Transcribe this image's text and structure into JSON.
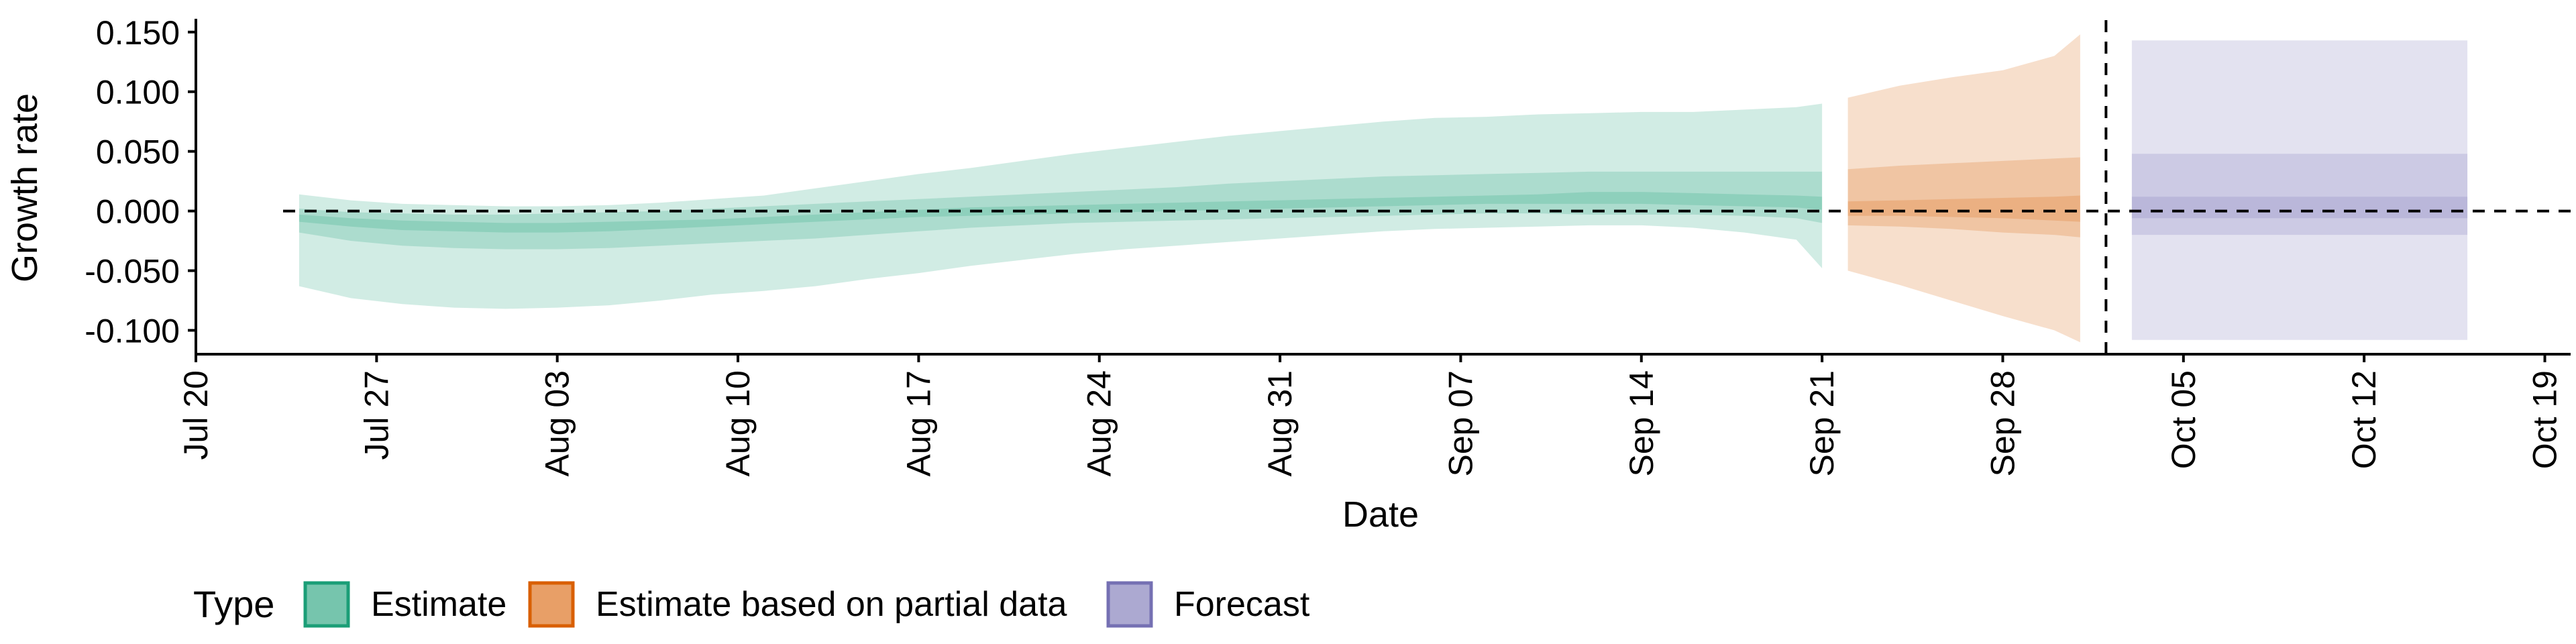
{
  "chart_data": {
    "type": "area",
    "xlabel": "Date",
    "ylabel": "Growth rate",
    "x_ticks": [
      "Jul 20",
      "Jul 27",
      "Aug 03",
      "Aug 10",
      "Aug 17",
      "Aug 24",
      "Aug 31",
      "Sep 07",
      "Sep 14",
      "Sep 21",
      "Sep 28",
      "Oct 05",
      "Oct 12",
      "Oct 19"
    ],
    "xlim": [
      "2020-07-20",
      "2020-10-20"
    ],
    "y_ticks": [
      "0.150",
      "0.100",
      "0.050",
      "0.000",
      "-0.050",
      "-0.100"
    ],
    "ylim": [
      -0.12,
      0.16
    ],
    "reference_lines": {
      "horizontal_y": 0.0,
      "vertical_x": "2020-10-02"
    },
    "legend": {
      "title": "Type",
      "position": "bottom-left",
      "items": [
        {
          "label": "Estimate",
          "color": "#1B9E77"
        },
        {
          "label": "Estimate based on partial data",
          "color": "#D95F02"
        },
        {
          "label": "Forecast",
          "color": "#7570B3"
        }
      ]
    },
    "series": [
      {
        "name": "Estimate",
        "color": "#1B9E77",
        "x": [
          "2020-07-24",
          "2020-07-26",
          "2020-07-28",
          "2020-07-30",
          "2020-08-01",
          "2020-08-03",
          "2020-08-05",
          "2020-08-07",
          "2020-08-09",
          "2020-08-11",
          "2020-08-13",
          "2020-08-15",
          "2020-08-17",
          "2020-08-19",
          "2020-08-21",
          "2020-08-23",
          "2020-08-25",
          "2020-08-27",
          "2020-08-29",
          "2020-08-31",
          "2020-09-02",
          "2020-09-04",
          "2020-09-06",
          "2020-09-08",
          "2020-09-10",
          "2020-09-12",
          "2020-09-14",
          "2020-09-16",
          "2020-09-18",
          "2020-09-20",
          "2020-09-21"
        ],
        "lower_90": [
          -0.063,
          -0.073,
          -0.078,
          -0.081,
          -0.082,
          -0.081,
          -0.079,
          -0.075,
          -0.07,
          -0.067,
          -0.063,
          -0.057,
          -0.052,
          -0.046,
          -0.041,
          -0.036,
          -0.032,
          -0.029,
          -0.026,
          -0.023,
          -0.02,
          -0.017,
          -0.015,
          -0.014,
          -0.013,
          -0.012,
          -0.012,
          -0.014,
          -0.018,
          -0.024,
          -0.048
        ],
        "upper_90": [
          0.014,
          0.009,
          0.006,
          0.005,
          0.004,
          0.004,
          0.005,
          0.007,
          0.01,
          0.013,
          0.019,
          0.025,
          0.031,
          0.036,
          0.042,
          0.048,
          0.053,
          0.058,
          0.063,
          0.067,
          0.071,
          0.075,
          0.078,
          0.079,
          0.081,
          0.082,
          0.083,
          0.083,
          0.085,
          0.087,
          0.09
        ],
        "lower_50": [
          -0.018,
          -0.025,
          -0.029,
          -0.031,
          -0.032,
          -0.032,
          -0.031,
          -0.029,
          -0.027,
          -0.025,
          -0.023,
          -0.02,
          -0.017,
          -0.014,
          -0.012,
          -0.01,
          -0.009,
          -0.008,
          -0.007,
          -0.006,
          -0.005,
          -0.004,
          -0.003,
          -0.002,
          -0.002,
          -0.003,
          -0.003,
          -0.003,
          -0.004,
          -0.006,
          -0.01
        ],
        "upper_50": [
          0.002,
          -0.001,
          -0.002,
          -0.003,
          -0.003,
          -0.002,
          -0.001,
          0.0,
          0.002,
          0.004,
          0.006,
          0.008,
          0.01,
          0.012,
          0.014,
          0.016,
          0.018,
          0.02,
          0.023,
          0.025,
          0.027,
          0.029,
          0.03,
          0.031,
          0.032,
          0.033,
          0.033,
          0.033,
          0.033,
          0.033,
          0.033
        ],
        "lower_20": [
          -0.009,
          -0.013,
          -0.016,
          -0.017,
          -0.018,
          -0.018,
          -0.017,
          -0.015,
          -0.013,
          -0.011,
          -0.009,
          -0.007,
          -0.005,
          -0.004,
          -0.003,
          -0.002,
          -0.001,
          0.0,
          0.001,
          0.002,
          0.003,
          0.004,
          0.005,
          0.006,
          0.006,
          0.006,
          0.006,
          0.005,
          0.004,
          0.003,
          0.001
        ],
        "upper_20": [
          -0.003,
          -0.006,
          -0.008,
          -0.009,
          -0.01,
          -0.01,
          -0.009,
          -0.008,
          -0.007,
          -0.005,
          -0.003,
          -0.001,
          0.001,
          0.003,
          0.004,
          0.005,
          0.006,
          0.007,
          0.008,
          0.009,
          0.01,
          0.011,
          0.012,
          0.013,
          0.014,
          0.016,
          0.016,
          0.015,
          0.014,
          0.013,
          0.012
        ]
      },
      {
        "name": "Estimate based on partial data",
        "color": "#D95F02",
        "x": [
          "2020-09-22",
          "2020-09-24",
          "2020-09-26",
          "2020-09-28",
          "2020-09-30",
          "2020-10-01"
        ],
        "lower_90": [
          -0.05,
          -0.062,
          -0.075,
          -0.088,
          -0.1,
          -0.11
        ],
        "upper_90": [
          0.095,
          0.105,
          0.112,
          0.118,
          0.13,
          0.148
        ],
        "lower_50": [
          -0.012,
          -0.013,
          -0.015,
          -0.018,
          -0.02,
          -0.022
        ],
        "upper_50": [
          0.035,
          0.038,
          0.04,
          0.042,
          0.044,
          0.045
        ],
        "lower_20": [
          -0.004,
          -0.004,
          -0.005,
          -0.006,
          -0.008,
          -0.009
        ],
        "upper_20": [
          0.008,
          0.009,
          0.01,
          0.011,
          0.012,
          0.013
        ]
      },
      {
        "name": "Forecast",
        "color": "#7570B3",
        "x": [
          "2020-10-03",
          "2020-10-16"
        ],
        "lower_90": [
          -0.108,
          -0.108
        ],
        "upper_90": [
          0.143,
          0.143
        ],
        "lower_50": [
          -0.02,
          -0.02
        ],
        "upper_50": [
          0.048,
          0.048
        ],
        "lower_20": [
          -0.006,
          -0.006
        ],
        "upper_20": [
          0.012,
          0.012
        ]
      }
    ]
  }
}
